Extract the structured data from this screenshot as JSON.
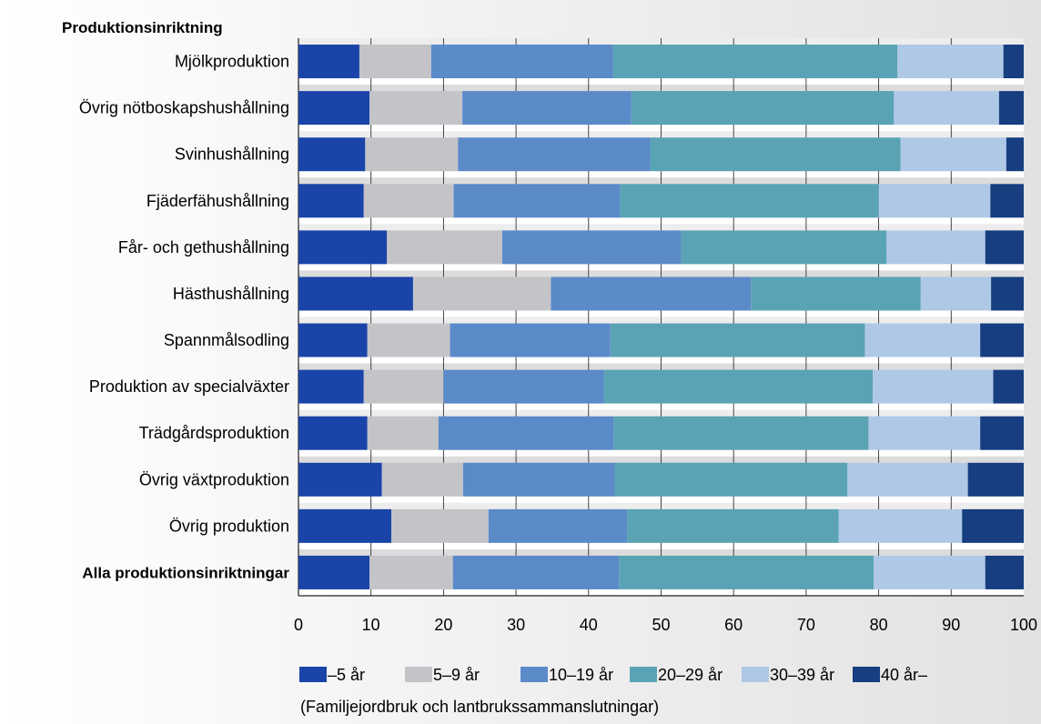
{
  "chart_data": {
    "type": "bar",
    "orientation": "horizontal",
    "stacked": true,
    "category_heading": "Produktionsinriktning",
    "note": "(Familjejordbruk och lantbrukssammanslutningar)",
    "categories": [
      "Mjölkproduktion",
      "Övrig nötboskapshushållning",
      "Svinhushållning",
      "Fjäderfähushållning",
      "Får- och gethushållning",
      "Hästhushållning",
      "Spannmålsodling",
      "Produktion av specialväxter",
      "Trädgårdsproduktion",
      "Övrig växtproduktion",
      "Övrig produktion",
      "Alla produktionsinriktningar"
    ],
    "bold_categories": [
      "Alla produktionsinriktningar"
    ],
    "xlim": [
      0,
      100
    ],
    "xticks": [
      "0",
      "10",
      "20",
      "30",
      "40",
      "50",
      "60",
      "70",
      "80",
      "90",
      "100"
    ],
    "grid": true,
    "legend_position": "bottom",
    "series": [
      {
        "name": "–5 år",
        "color": "#1a44a8",
        "values": [
          8.4,
          9.8,
          9.2,
          9.0,
          12.2,
          15.8,
          9.5,
          9.0,
          9.5,
          11.5,
          12.8,
          9.8
        ]
      },
      {
        "name": "5–9 år",
        "color": "#c3c3c8",
        "values": [
          9.9,
          12.8,
          12.8,
          12.4,
          15.9,
          19.0,
          11.4,
          11.0,
          9.8,
          11.2,
          13.4,
          11.5
        ]
      },
      {
        "name": "10–19 år",
        "color": "#5b8ac9",
        "values": [
          25.1,
          23.3,
          26.5,
          22.9,
          24.6,
          27.6,
          22.1,
          22.1,
          24.2,
          20.9,
          19.1,
          22.9
        ]
      },
      {
        "name": "20–29 år",
        "color": "#5aa3b5",
        "values": [
          39.2,
          36.2,
          34.5,
          35.7,
          28.4,
          23.4,
          35.1,
          37.1,
          35.1,
          32.1,
          29.2,
          35.1
        ]
      },
      {
        "name": "30–39 år",
        "color": "#aec8e6",
        "values": [
          14.6,
          14.5,
          14.6,
          15.4,
          13.6,
          9.7,
          15.9,
          16.6,
          15.4,
          16.6,
          17.0,
          15.4
        ]
      },
      {
        "name": "40 år–",
        "color": "#163e80",
        "values": [
          2.8,
          3.4,
          2.4,
          4.6,
          5.3,
          4.5,
          6.0,
          4.2,
          6.0,
          7.7,
          8.5,
          5.3
        ]
      }
    ]
  }
}
